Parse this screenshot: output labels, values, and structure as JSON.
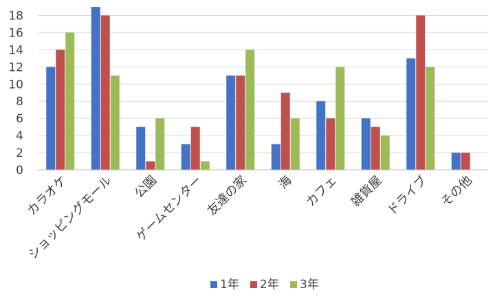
{
  "chart_data": {
    "type": "bar",
    "title": "",
    "xlabel": "",
    "ylabel": "",
    "ylim": [
      0,
      19
    ],
    "yticks": [
      0,
      2,
      4,
      6,
      8,
      10,
      12,
      14,
      16,
      18
    ],
    "grid": true,
    "legend_position": "bottom",
    "categories": [
      "カラオケ",
      "ショッピングモール",
      "公園",
      "ゲームセンター",
      "友達の家",
      "海",
      "カフェ",
      "雑貨屋",
      "ドライブ",
      "その他"
    ],
    "series": [
      {
        "name": "1年",
        "color": "#4472C4",
        "values": [
          12,
          19,
          5,
          3,
          11,
          3,
          8,
          6,
          13,
          2
        ]
      },
      {
        "name": "2年",
        "color": "#C0504D",
        "values": [
          14,
          18,
          1,
          5,
          11,
          9,
          6,
          5,
          18,
          2
        ]
      },
      {
        "name": "3年",
        "color": "#9BBB59",
        "values": [
          16,
          11,
          6,
          1,
          14,
          6,
          12,
          4,
          12,
          null
        ]
      }
    ]
  }
}
